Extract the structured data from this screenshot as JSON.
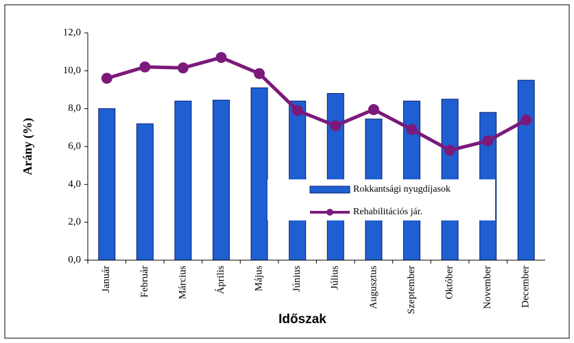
{
  "chart_data": {
    "type": "bar",
    "x_label": "Időszak",
    "y_label": "Arány (%)",
    "categories": [
      "Január",
      "Február",
      "Március",
      "Április",
      "Május",
      "Június",
      "Július",
      "Augusztus",
      "Szeptember",
      "Október",
      "November",
      "December"
    ],
    "series": [
      {
        "name": "Rokkantsági nyugdíjasok",
        "type": "bar",
        "color": "#1f5fd1",
        "values": [
          8.0,
          7.2,
          8.4,
          8.45,
          9.1,
          8.4,
          8.8,
          7.45,
          8.4,
          8.5,
          7.8,
          9.5
        ]
      },
      {
        "name": "Rehabilitációs jár.",
        "type": "line",
        "color": "#7b1a7b",
        "values": [
          9.6,
          10.2,
          10.15,
          10.7,
          9.85,
          7.9,
          7.1,
          7.95,
          6.9,
          5.8,
          6.3,
          7.4
        ]
      }
    ],
    "ylim": [
      0,
      12
    ],
    "yticks": [
      {
        "value": 0,
        "label": "0,0"
      },
      {
        "value": 2,
        "label": "2,0"
      },
      {
        "value": 4,
        "label": "4,0"
      },
      {
        "value": 6,
        "label": "6,0"
      },
      {
        "value": 8,
        "label": "8,0"
      },
      {
        "value": 10,
        "label": "10,0"
      },
      {
        "value": 12,
        "label": "12,0"
      }
    ]
  }
}
